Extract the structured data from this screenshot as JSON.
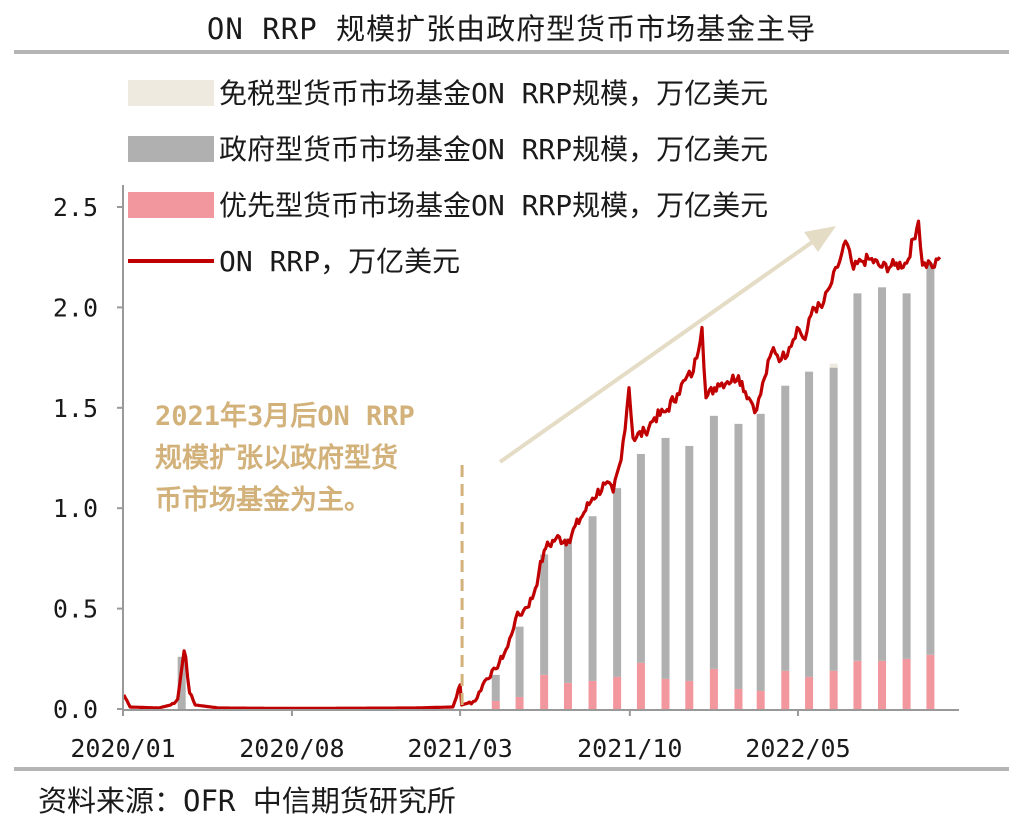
{
  "header": {
    "title": "ON RRP 规模扩张由政府型货币市场基金主导"
  },
  "footer": {
    "source": "资料来源：OFR 中信期货研究所"
  },
  "colors": {
    "tax_exempt": "#eeeae0",
    "government": "#b0b0b0",
    "prime": "#f2979e",
    "on_rrp": "#c00000",
    "annotation": "#d2b27a"
  },
  "chart_data": {
    "type": "bar",
    "title": "ON RRP 规模扩张由政府型货币市场基金主导",
    "xlabel": "",
    "ylabel": "",
    "ylim": [
      0,
      2.5
    ],
    "yticks": [
      "0.0",
      "0.5",
      "1.0",
      "1.5",
      "2.0",
      "2.5"
    ],
    "xticks": [
      "2020/01",
      "2020/08",
      "2021/03",
      "2021/10",
      "2022/05"
    ],
    "grid": false,
    "legend_position": "top-left",
    "legend": [
      "免税型货币市场基金ON RRP规模，万亿美元",
      "政府型货币市场基金ON RRP规模，万亿美元",
      "优先型货币市场基金ON RRP规模，万亿美元",
      "ON RRP，万亿美元"
    ],
    "bar_series": {
      "months": [
        "2020/03",
        "2021/04",
        "2021/05",
        "2021/06",
        "2021/07",
        "2021/08",
        "2021/09",
        "2021/10",
        "2021/11",
        "2021/12",
        "2022/01",
        "2022/02",
        "2022/03",
        "2022/04",
        "2022/05",
        "2022/06",
        "2022/07",
        "2022/08",
        "2022/09",
        "2022/10"
      ],
      "government": [
        0.26,
        0.13,
        0.35,
        0.6,
        0.72,
        0.82,
        0.94,
        1.04,
        1.2,
        1.17,
        1.26,
        1.32,
        1.38,
        1.42,
        1.52,
        1.51,
        1.83,
        1.86,
        1.82,
        1.95
      ],
      "prime": [
        0.0,
        0.04,
        0.06,
        0.17,
        0.13,
        0.14,
        0.16,
        0.23,
        0.15,
        0.14,
        0.2,
        0.1,
        0.09,
        0.19,
        0.16,
        0.19,
        0.24,
        0.24,
        0.25,
        0.27
      ],
      "tax_exempt": [
        0.0,
        0.0,
        0.0,
        0.0,
        0.0,
        0.0,
        0.0,
        0.0,
        0.0,
        0.0,
        0.0,
        0.0,
        0.0,
        0.0,
        0.0,
        0.02,
        0.0,
        0.0,
        0.0,
        0.0
      ]
    },
    "line_series": {
      "name": "ON RRP，万亿美元",
      "points": [
        [
          "2020/01/02",
          0.07
        ],
        [
          "2020/01/10",
          0.01
        ],
        [
          "2020/02/15",
          0.005
        ],
        [
          "2020/03/01",
          0.02
        ],
        [
          "2020/03/10",
          0.05
        ],
        [
          "2020/03/16",
          0.23
        ],
        [
          "2020/03/18",
          0.29
        ],
        [
          "2020/03/20",
          0.26
        ],
        [
          "2020/03/25",
          0.08
        ],
        [
          "2020/04/01",
          0.02
        ],
        [
          "2020/05/01",
          0.005
        ],
        [
          "2020/08/01",
          0.003
        ],
        [
          "2021/01/01",
          0.005
        ],
        [
          "2021/02/20",
          0.01
        ],
        [
          "2021/03/01",
          0.12
        ],
        [
          "2021/03/03",
          0.02
        ],
        [
          "2021/03/20",
          0.04
        ],
        [
          "2021/04/01",
          0.14
        ],
        [
          "2021/04/15",
          0.2
        ],
        [
          "2021/04/30",
          0.31
        ],
        [
          "2021/05/10",
          0.45
        ],
        [
          "2021/05/20",
          0.49
        ],
        [
          "2021/05/31",
          0.55
        ],
        [
          "2021/06/08",
          0.67
        ],
        [
          "2021/06/15",
          0.79
        ],
        [
          "2021/06/17",
          0.8
        ],
        [
          "2021/06/30",
          0.85
        ],
        [
          "2021/07/15",
          0.84
        ],
        [
          "2021/07/31",
          0.95
        ],
        [
          "2021/08/15",
          1.05
        ],
        [
          "2021/08/31",
          1.12
        ],
        [
          "2021/09/10",
          1.08
        ],
        [
          "2021/09/20",
          1.24
        ],
        [
          "2021/09/30",
          1.6
        ],
        [
          "2021/10/05",
          1.35
        ],
        [
          "2021/10/20",
          1.38
        ],
        [
          "2021/11/01",
          1.45
        ],
        [
          "2021/11/15",
          1.48
        ],
        [
          "2021/11/30",
          1.57
        ],
        [
          "2021/12/10",
          1.64
        ],
        [
          "2021/12/20",
          1.68
        ],
        [
          "2021/12/31",
          1.9
        ],
        [
          "2022/01/05",
          1.55
        ],
        [
          "2022/01/20",
          1.62
        ],
        [
          "2022/02/01",
          1.63
        ],
        [
          "2022/02/15",
          1.66
        ],
        [
          "2022/02/28",
          1.55
        ],
        [
          "2022/03/10",
          1.49
        ],
        [
          "2022/03/20",
          1.65
        ],
        [
          "2022/03/31",
          1.8
        ],
        [
          "2022/04/10",
          1.74
        ],
        [
          "2022/04/20",
          1.8
        ],
        [
          "2022/04/30",
          1.9
        ],
        [
          "2022/05/10",
          1.84
        ],
        [
          "2022/05/20",
          2.0
        ],
        [
          "2022/05/31",
          2.0
        ],
        [
          "2022/06/10",
          2.1
        ],
        [
          "2022/06/20",
          2.2
        ],
        [
          "2022/06/30",
          2.33
        ],
        [
          "2022/07/10",
          2.19
        ],
        [
          "2022/07/20",
          2.23
        ],
        [
          "2022/07/31",
          2.24
        ],
        [
          "2022/08/15",
          2.2
        ],
        [
          "2022/08/31",
          2.21
        ],
        [
          "2022/09/15",
          2.22
        ],
        [
          "2022/09/30",
          2.43
        ],
        [
          "2022/10/05",
          2.21
        ],
        [
          "2022/10/15",
          2.22
        ],
        [
          "2022/10/20",
          2.2
        ],
        [
          "2022/10/27",
          2.25
        ]
      ]
    },
    "annotation": {
      "lines": [
        "2021年3月后ON RRP",
        "规模扩张以政府型货",
        "币市场基金为主。"
      ],
      "marker_date": "2021/03"
    }
  }
}
